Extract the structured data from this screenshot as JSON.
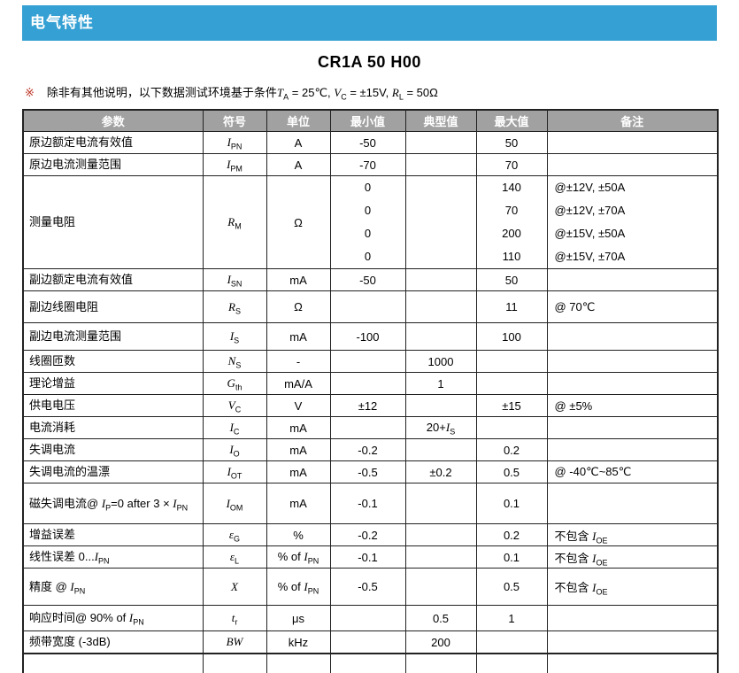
{
  "colors": {
    "banner": "#35a0d3",
    "header_bg": "#a1a1a1",
    "note_marker": "#c0392b",
    "border": "#222222"
  },
  "section_title": "电气特性",
  "product_title": "CR1A 50 H00",
  "note": {
    "marker": "※",
    "text": "除非有其他说明，以下数据测试环境基于条件*T*_{A} = 25℃, *V*_{C} = ±15V, *R*_{L} = 50Ω"
  },
  "table": {
    "headers": [
      "参数",
      "符号",
      "单位",
      "最小值",
      "典型值",
      "最大值",
      "备注"
    ],
    "rows": [
      {
        "param": "原边额定电流有效值",
        "symbol": "*I*_{PN}",
        "unit": "A",
        "min": "-50",
        "typ": "",
        "max": "50",
        "remark": ""
      },
      {
        "param": "原边电流测量范围",
        "symbol": "*I*_{PM}",
        "unit": "A",
        "min": "-70",
        "typ": "",
        "max": "70",
        "remark": ""
      },
      {
        "param": "测量电阻",
        "symbol": "*R*_{M}",
        "unit": "Ω",
        "min": [
          "0",
          "0",
          "0",
          "0"
        ],
        "typ": [
          "",
          "",
          "",
          ""
        ],
        "max": [
          "140",
          "70",
          "200",
          "110"
        ],
        "remark": [
          "@±12V, ±50A",
          "@±12V, ±70A",
          "@±15V, ±50A",
          "@±15V, ±70A"
        ]
      },
      {
        "param": "副边额定电流有效值",
        "symbol": "*I*_{SN}",
        "unit": "mA",
        "min": "-50",
        "typ": "",
        "max": "50",
        "remark": ""
      },
      {
        "param": "副边线圈电阻",
        "symbol": "*R*_{S}",
        "unit": "Ω",
        "min": "",
        "typ": "",
        "max": "11",
        "remark": "@ 70℃"
      },
      {
        "param": "副边电流测量范围",
        "symbol": "*I*_{S}",
        "unit": "mA",
        "min": "-100",
        "typ": "",
        "max": "100",
        "remark": ""
      },
      {
        "param": "线圈匝数",
        "symbol": "*N*_{S}",
        "unit": "-",
        "min": "",
        "typ": "1000",
        "max": "",
        "remark": ""
      },
      {
        "param": "理论增益",
        "symbol": "*G*_{th}",
        "unit": "mA/A",
        "min": "",
        "typ": "1",
        "max": "",
        "remark": ""
      },
      {
        "param": "供电电压",
        "symbol": "*V*_{C}",
        "unit": "V",
        "min": "±12",
        "typ": "",
        "max": "±15",
        "remark": "@ ±5%"
      },
      {
        "param": "电流消耗",
        "symbol": "*I*_{C}",
        "unit": "mA",
        "min": "",
        "typ": "20+*I*_{S}",
        "max": "",
        "remark": ""
      },
      {
        "param": "失调电流",
        "symbol": "*I*_{O}",
        "unit": "mA",
        "min": "-0.2",
        "typ": "",
        "max": "0.2",
        "remark": ""
      },
      {
        "param": "失调电流的温漂",
        "symbol": "*I*_{OT}",
        "unit": "mA",
        "min": "-0.5",
        "typ": "±0.2",
        "max": "0.5",
        "remark": "@ -40℃~85℃"
      },
      {
        "param": "磁失调电流@ *I*_{P}=0  after  3 × *I*_{PN}",
        "symbol": "*I*_{OM}",
        "unit": "mA",
        "min": "-0.1",
        "typ": "",
        "max": "0.1",
        "remark": ""
      },
      {
        "param": "增益误差",
        "symbol": "*ε*_{G}",
        "unit": "%",
        "min": "-0.2",
        "typ": "",
        "max": "0.2",
        "remark": "不包含 *I*_{OE}"
      },
      {
        "param": "线性误差 0...*I*_{PN}",
        "symbol": "*ε*_{L}",
        "unit": "% of *I*_{PN}",
        "min": "-0.1",
        "typ": "",
        "max": "0.1",
        "remark": "不包含 *I*_{OE}"
      },
      {
        "param": "精度  @ *I*_{PN}",
        "symbol": "*X*",
        "unit": "% of *I*_{PN}",
        "min": "-0.5",
        "typ": "",
        "max": "0.5",
        "remark": "不包含 *I*_{OE}"
      },
      {
        "param": "响应时间@ 90% of *I*_{PN}",
        "symbol": "*t*_{r}",
        "unit": "μs",
        "min": "",
        "typ": "0.5",
        "max": "1",
        "remark": ""
      },
      {
        "param": "频带宽度 (-3dB)",
        "symbol": "*BW*",
        "unit": "kHz",
        "min": "",
        "typ": "200",
        "max": "",
        "remark": ""
      }
    ]
  }
}
